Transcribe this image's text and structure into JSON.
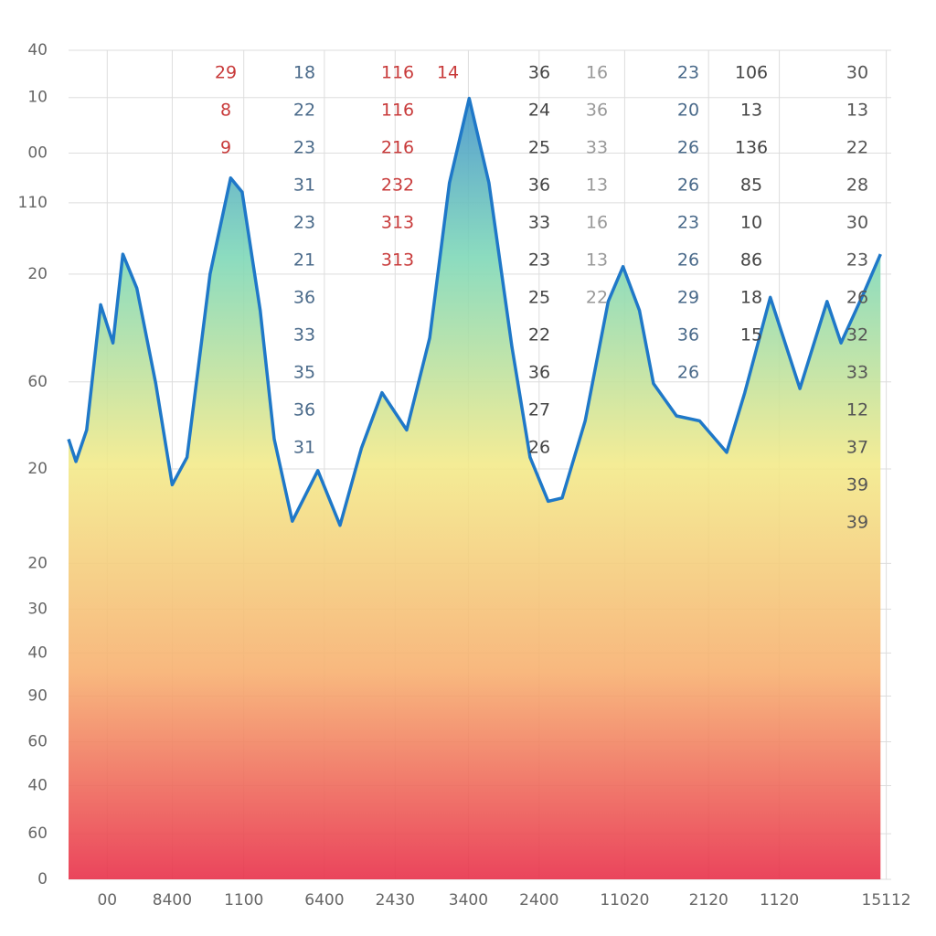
{
  "chart_data": {
    "type": "area",
    "xlim": [
      0,
      100
    ],
    "ylim": [
      0,
      100
    ],
    "xticks": [
      {
        "value": 4.7,
        "label": "00"
      },
      {
        "value": 12.6,
        "label": "8400"
      },
      {
        "value": 21.3,
        "label": "1100"
      },
      {
        "value": 31.1,
        "label": "6400"
      },
      {
        "value": 39.7,
        "label": "2430"
      },
      {
        "value": 48.6,
        "label": "3400"
      },
      {
        "value": 57.2,
        "label": "2400"
      },
      {
        "value": 67.6,
        "label": "11020"
      },
      {
        "value": 77.8,
        "label": "2120"
      },
      {
        "value": 86.4,
        "label": "1120"
      },
      {
        "value": 99.4,
        "label": "15112"
      }
    ],
    "yticks": [
      {
        "value": 100,
        "label": "40"
      },
      {
        "value": 94.3,
        "label": "10"
      },
      {
        "value": 87.6,
        "label": "00"
      },
      {
        "value": 81.6,
        "label": "110"
      },
      {
        "value": 73.0,
        "label": "20"
      },
      {
        "value": 60.0,
        "label": "60"
      },
      {
        "value": 49.5,
        "label": "20"
      },
      {
        "value": 38.1,
        "label": "20"
      },
      {
        "value": 32.6,
        "label": "30"
      },
      {
        "value": 27.3,
        "label": "40"
      },
      {
        "value": 22.1,
        "label": "90"
      },
      {
        "value": 16.6,
        "label": "60"
      },
      {
        "value": 11.3,
        "label": "40"
      },
      {
        "value": 5.5,
        "label": "60"
      },
      0
    ],
    "grid": true,
    "line_color": "#1f78c8",
    "gradient": [
      "#2f7fd0",
      "#7fd8b8",
      "#f3ea8a",
      "#f7b070",
      "#e8304a"
    ],
    "x": [
      0,
      0.9,
      2.2,
      3.9,
      5.4,
      6.6,
      8.3,
      10.6,
      12.6,
      14.4,
      17.2,
      19.7,
      21.1,
      23.3,
      25.0,
      27.2,
      30.3,
      33.0,
      35.6,
      38.1,
      41.1,
      43.9,
      46.3,
      48.7,
      51.1,
      53.9,
      56.1,
      58.3,
      60.0,
      62.8,
      65.6,
      67.4,
      69.4,
      71.1,
      73.9,
      76.7,
      80.0,
      82.2,
      85.3,
      88.9,
      92.2,
      93.9,
      96.7,
      98.7
    ],
    "values": [
      53.1,
      50.4,
      54.2,
      69.3,
      64.7,
      75.4,
      71.3,
      59.8,
      47.6,
      50.9,
      73.0,
      84.6,
      82.9,
      68.6,
      53.1,
      43.2,
      49.3,
      42.7,
      52.0,
      58.7,
      54.2,
      65.3,
      84.0,
      94.2,
      84.0,
      64.2,
      50.9,
      45.6,
      46.0,
      55.3,
      69.7,
      73.9,
      68.6,
      59.8,
      55.9,
      55.3,
      51.5,
      58.7,
      70.2,
      59.2,
      69.7,
      64.7,
      70.8,
      75.4
    ],
    "annotation_columns": [
      {
        "color": "#c83a3a",
        "texts": [
          "29",
          "8",
          "9"
        ]
      },
      {
        "color": "#4a6a8a",
        "texts": [
          "18",
          "22",
          "23",
          "31",
          "23",
          "21",
          "36",
          "33",
          "35",
          "36",
          "31"
        ]
      },
      {
        "color": "#c83a3a",
        "texts": [
          "116",
          "116",
          "216",
          "232",
          "313",
          "313"
        ]
      },
      {
        "color": "#c83a3a",
        "texts": [
          "14"
        ]
      },
      {
        "color": "#444444",
        "texts": [
          "36",
          "24",
          "25",
          "36",
          "33",
          "23",
          "25",
          "22",
          "36",
          "27",
          "26"
        ]
      },
      {
        "color": "#999999",
        "texts": [
          "16",
          "36",
          "33",
          "13",
          "16",
          "13",
          "22"
        ]
      },
      {
        "color": "#4a6a8a",
        "texts": [
          "23",
          "20",
          "26",
          "26",
          "23",
          "26",
          "29",
          "36",
          "26"
        ]
      },
      {
        "color": "#444444",
        "texts": [
          "106",
          "13",
          "136",
          "85",
          "10",
          "86",
          "18",
          "15"
        ]
      },
      {
        "color": "#555555",
        "texts": [
          "30",
          "13",
          "22",
          "28",
          "30",
          "23",
          "26",
          "32",
          "33",
          "12",
          "37",
          "39",
          "39"
        ]
      }
    ]
  }
}
